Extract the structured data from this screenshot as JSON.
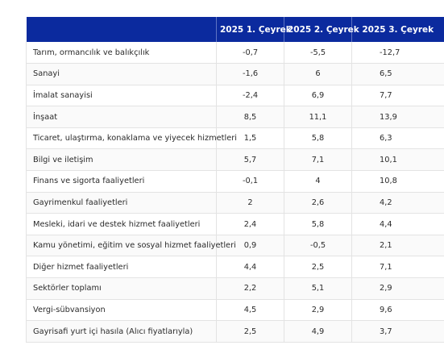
{
  "table": {
    "headers": [
      "",
      "2025 1. Çeyrek",
      "2025 2. Çeyrek",
      "2025 3. Çeyrek"
    ],
    "rows": [
      {
        "label": "Tarım, ormancılık ve balıkçılık",
        "q1": "-0,7",
        "q2": "-5,5",
        "q3": "-12,7"
      },
      {
        "label": "Sanayi",
        "q1": "-1,6",
        "q2": "6",
        "q3": "6,5"
      },
      {
        "label": "İmalat sanayisi",
        "q1": "-2,4",
        "q2": "6,9",
        "q3": "7,7"
      },
      {
        "label": "İnşaat",
        "q1": "8,5",
        "q2": "11,1",
        "q3": "13,9"
      },
      {
        "label": "Ticaret, ulaştırma, konaklama ve yiyecek hizmetleri",
        "q1": "1,5",
        "q2": "5,8",
        "q3": "6,3"
      },
      {
        "label": "Bilgi ve iletişim",
        "q1": "5,7",
        "q2": "7,1",
        "q3": "10,1"
      },
      {
        "label": "Finans ve sigorta faaliyetleri",
        "q1": "-0,1",
        "q2": "4",
        "q3": "10,8"
      },
      {
        "label": "Gayrimenkul faaliyetleri",
        "q1": "2",
        "q2": "2,6",
        "q3": "4,2"
      },
      {
        "label": "Mesleki, idari ve destek hizmet faaliyetleri",
        "q1": "2,4",
        "q2": "5,8",
        "q3": "4,4"
      },
      {
        "label": "Kamu yönetimi, eğitim ve sosyal hizmet faaliyetleri",
        "q1": "0,9",
        "q2": "-0,5",
        "q3": "2,1"
      },
      {
        "label": "Diğer hizmet faaliyetleri",
        "q1": "4,4",
        "q2": "2,5",
        "q3": "7,1"
      },
      {
        "label": "Sektörler toplamı",
        "q1": "2,2",
        "q2": "5,1",
        "q3": "2,9"
      },
      {
        "label": "Vergi-sübvansiyon",
        "q1": "4,5",
        "q2": "2,9",
        "q3": "9,6"
      },
      {
        "label": "Gayrisafi yurt içi hasıla (Alıcı fiyatlarıyla)",
        "q1": "2,5",
        "q2": "4,9",
        "q3": "3,7"
      }
    ]
  },
  "colors": {
    "header_bg": "#0b2a9e",
    "header_text": "#ffffff",
    "row_border": "#e3e3e3"
  }
}
